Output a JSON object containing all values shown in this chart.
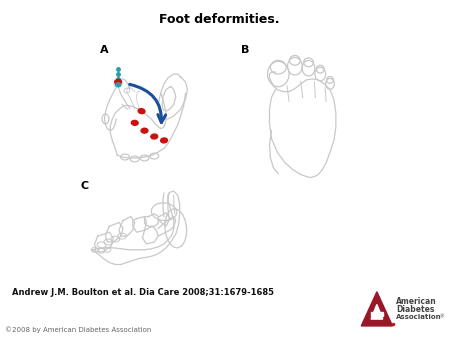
{
  "title": "Foot deformities.",
  "title_fontsize": 9,
  "title_fontweight": "bold",
  "citation": "Andrew J.M. Boulton et al. Dia Care 2008;31:1679-1685",
  "citation_fontsize": 6,
  "citation_fontweight": "bold",
  "copyright": "©2008 by American Diabetes Association",
  "copyright_fontsize": 5,
  "label_A": "A",
  "label_B": "B",
  "label_C": "C",
  "label_fontsize": 8,
  "label_fontweight": "bold",
  "bg_color": "#ffffff",
  "outline_color": "#c8c8c8",
  "red_color": "#cc1010",
  "blue_color": "#1a5099",
  "teal_color": "#3399aa",
  "ada_red": "#991828",
  "ada_gray": "#444444",
  "ada_dot": "#cc1010"
}
